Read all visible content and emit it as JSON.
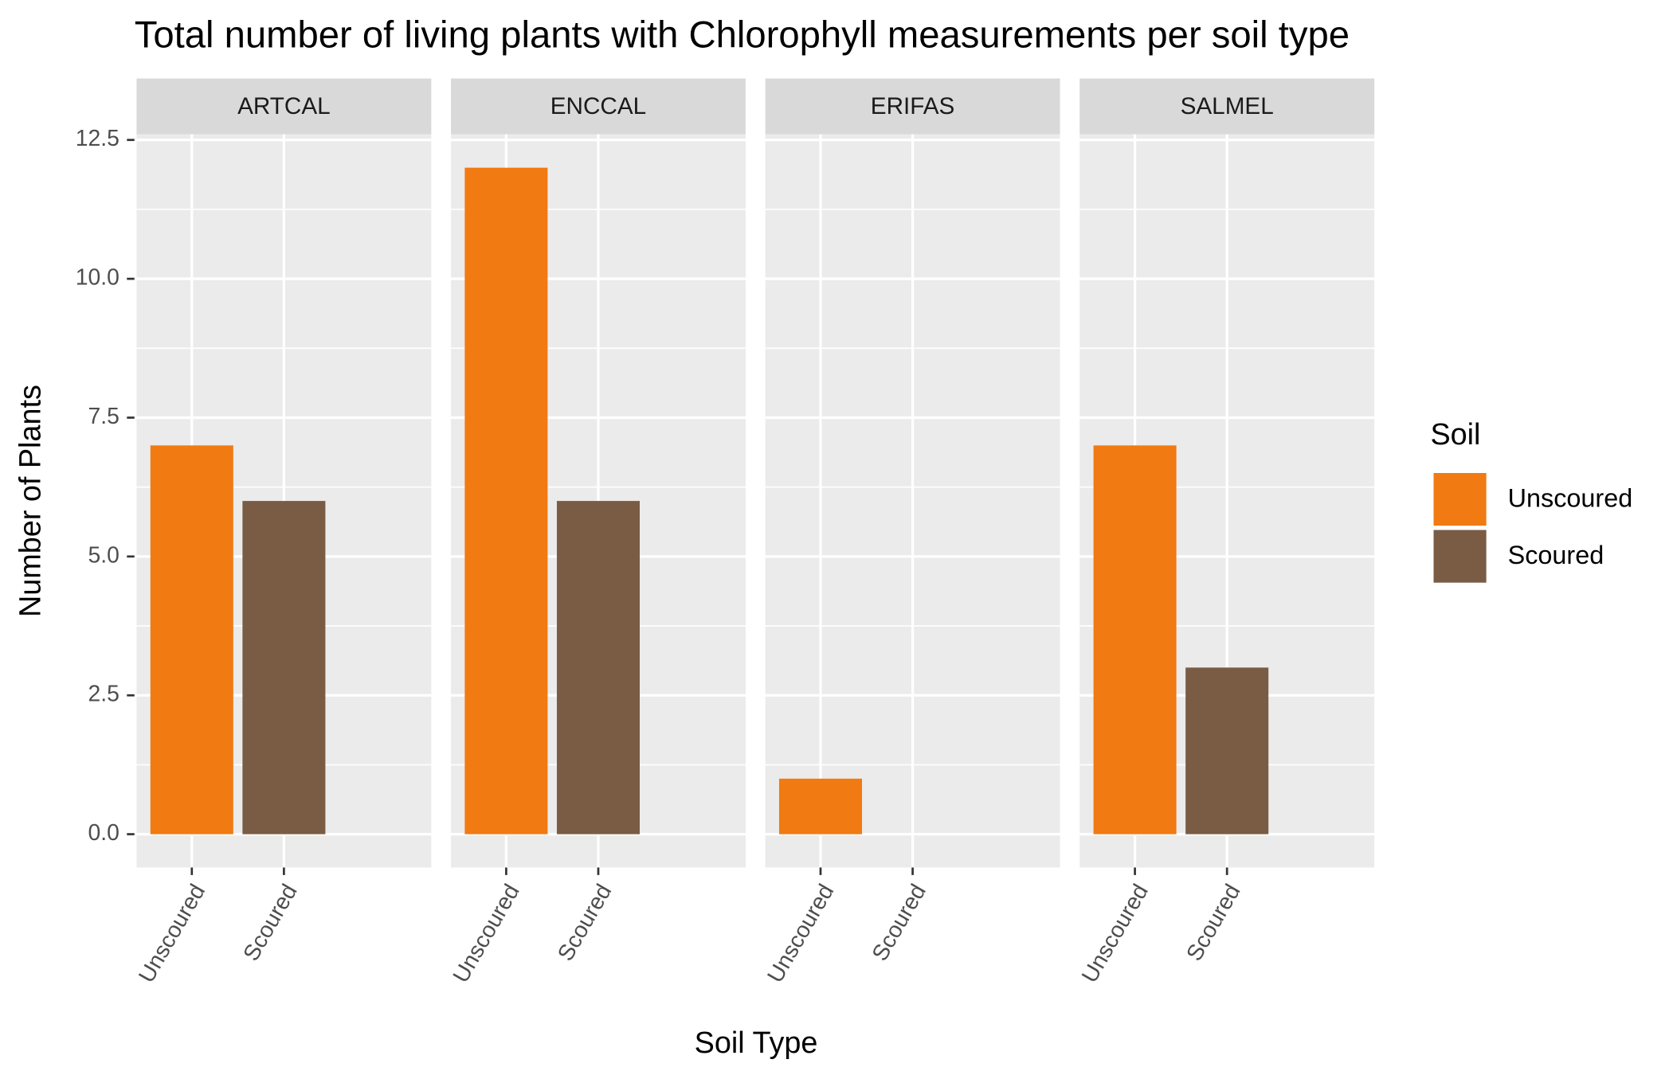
{
  "chart_data": {
    "type": "bar",
    "title": "Total number of living plants with Chlorophyll measurements per soil type",
    "x_label": "Soil Type",
    "y_label": "Number of Plants",
    "categories": [
      "Unscoured",
      "Scoured"
    ],
    "colors": [
      "#f17a12",
      "#7a5c44"
    ],
    "facets": [
      {
        "title": "ARTCAL",
        "values": [
          7,
          6
        ]
      },
      {
        "title": "ENCCAL",
        "values": [
          12,
          6
        ]
      },
      {
        "title": "ERIFAS",
        "values": [
          1,
          null
        ]
      },
      {
        "title": "SALMEL",
        "values": [
          7,
          3
        ]
      }
    ],
    "ylim": [
      -0.6,
      12.6
    ],
    "yticks": [
      {
        "value": 0,
        "label": "0.0"
      },
      {
        "value": 2.5,
        "label": "2.5"
      },
      {
        "value": 5,
        "label": "5.0"
      },
      {
        "value": 7.5,
        "label": "7.5"
      },
      {
        "value": 10,
        "label": "10.0"
      },
      {
        "value": 12.5,
        "label": "12.5"
      }
    ],
    "grid": true,
    "legend": {
      "title": "Soil",
      "position": "right"
    }
  }
}
